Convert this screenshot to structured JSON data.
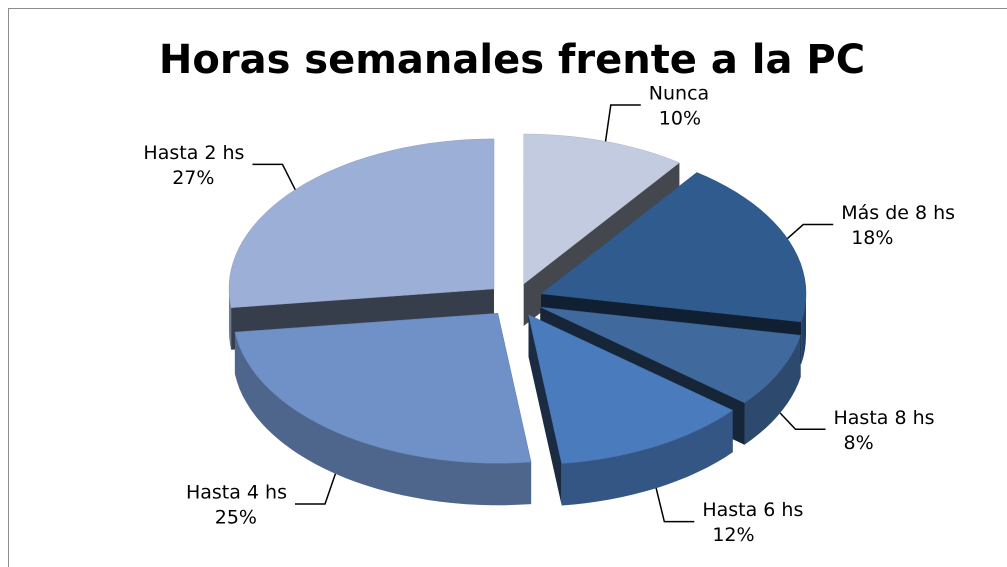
{
  "chart_data": {
    "type": "pie3d",
    "title": "Horas semanales frente a la PC",
    "categories": [
      "Nunca",
      "Más de 8 hs",
      "Hasta 8 hs",
      "Hasta 6 hs",
      "Hasta 4 hs",
      "Hasta 2 hs"
    ],
    "values": [
      10,
      18,
      8,
      12,
      25,
      27
    ],
    "value_labels": [
      "10%",
      "18%",
      "8%",
      "12%",
      "25%",
      "27%"
    ],
    "colors": [
      "#c3cbe0",
      "#2f5b8e",
      "#40699d",
      "#4a7bbd",
      "#6f91c8",
      "#9cb0d7"
    ]
  }
}
